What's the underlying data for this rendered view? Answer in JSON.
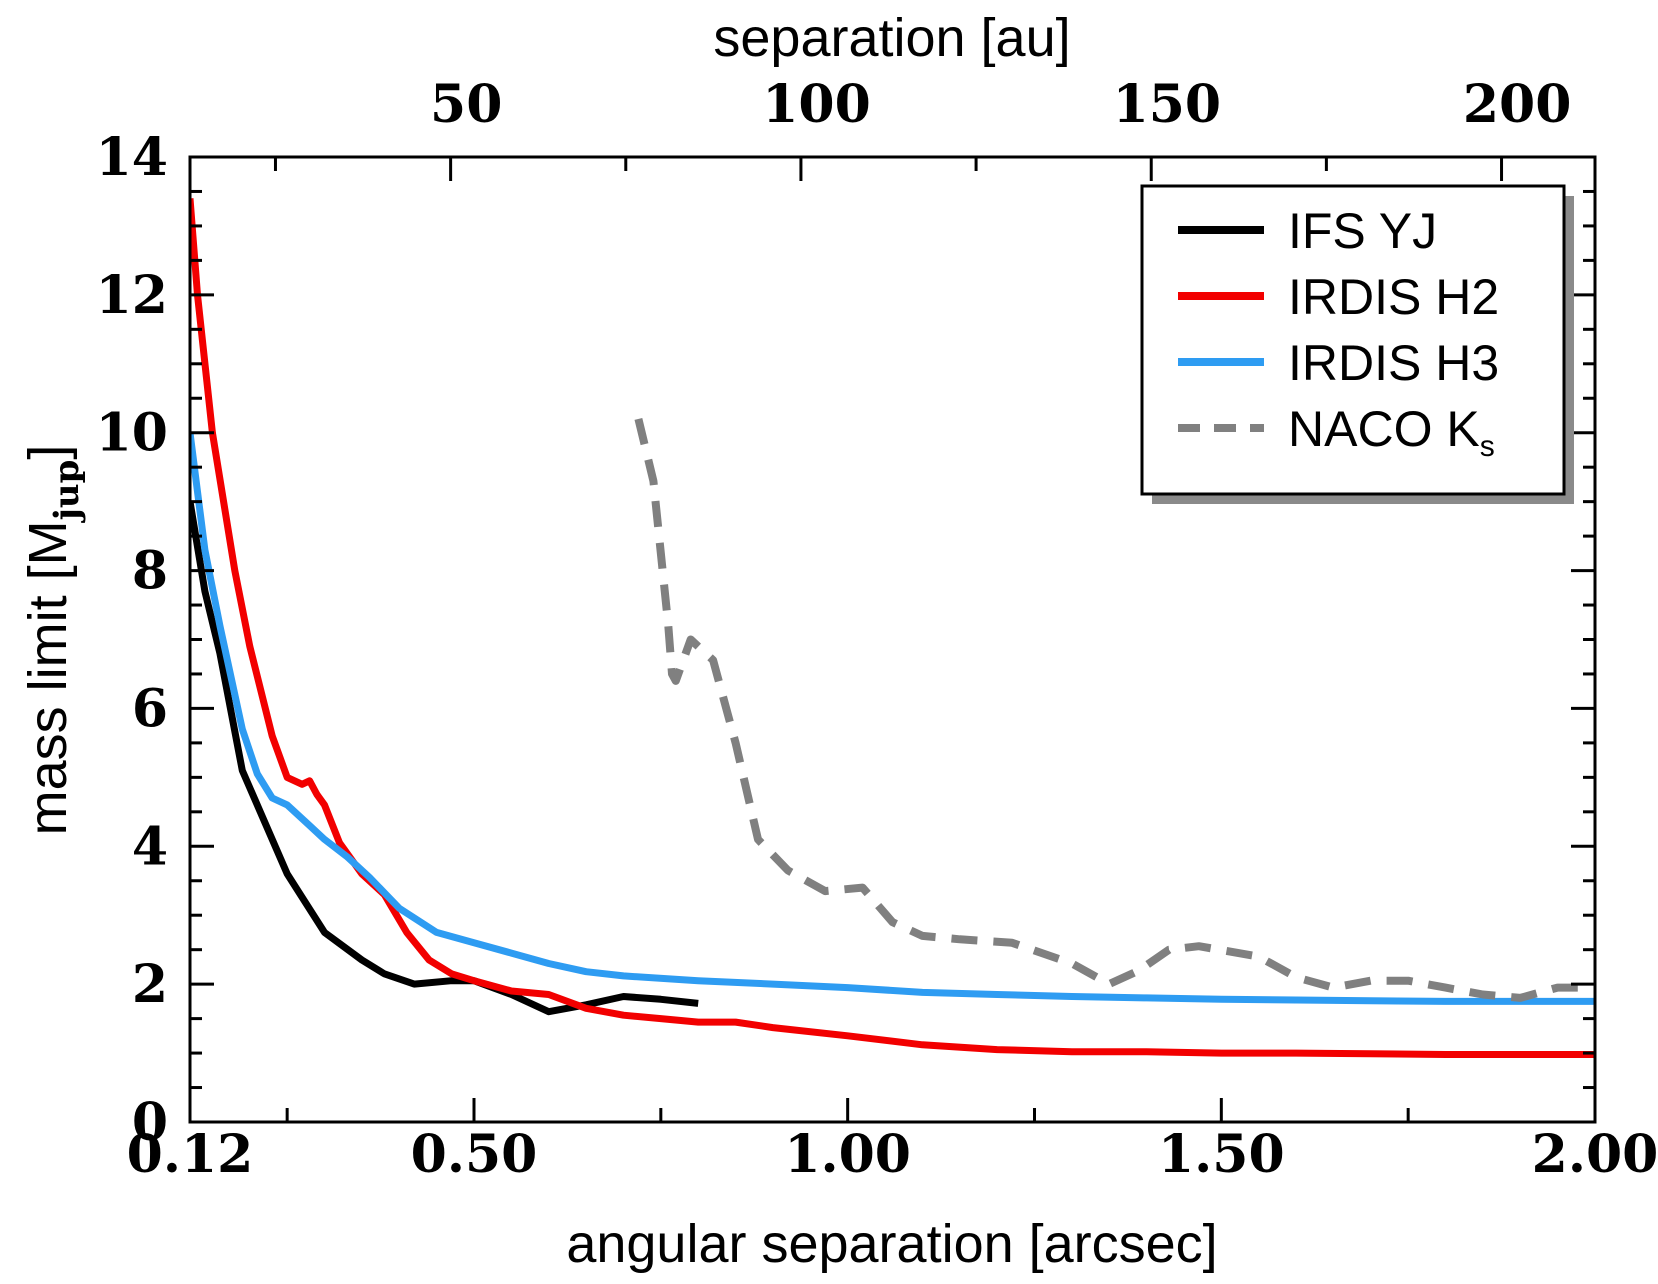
{
  "chart_data": {
    "type": "line",
    "xlabel": "angular separation [arcsec]",
    "ylabel": "mass limit [M",
    "ylabel_sub": "jup",
    "ylabel_close": "]",
    "top_axis_label": "separation [au]",
    "xlim": [
      0.12,
      2.0
    ],
    "ylim": [
      0,
      14
    ],
    "x_ticks": [
      {
        "value": 0.12,
        "label": "0.12"
      },
      {
        "value": 0.5,
        "label": "0.50"
      },
      {
        "value": 1.0,
        "label": "1.00"
      },
      {
        "value": 1.5,
        "label": "1.50"
      },
      {
        "value": 2.0,
        "label": "2.00"
      }
    ],
    "y_ticks": [
      {
        "value": 0,
        "label": "0"
      },
      {
        "value": 2,
        "label": "2"
      },
      {
        "value": 4,
        "label": "4"
      },
      {
        "value": 6,
        "label": "6"
      },
      {
        "value": 8,
        "label": "8"
      },
      {
        "value": 10,
        "label": "10"
      },
      {
        "value": 12,
        "label": "12"
      },
      {
        "value": 14,
        "label": "14"
      }
    ],
    "top_ticks": [
      {
        "value": 0.4896,
        "label": "50"
      },
      {
        "value": 0.9583,
        "label": "100"
      },
      {
        "value": 1.4271,
        "label": "150"
      },
      {
        "value": 1.8958,
        "label": "200"
      }
    ],
    "series": [
      {
        "name": "IFS YJ",
        "color": "#000000",
        "dashed": false,
        "x": [
          0.12,
          0.14,
          0.16,
          0.19,
          0.25,
          0.3,
          0.35,
          0.38,
          0.42,
          0.47,
          0.5,
          0.55,
          0.6,
          0.65,
          0.7,
          0.75,
          0.8
        ],
        "y": [
          9.0,
          7.7,
          6.8,
          5.1,
          3.6,
          2.75,
          2.35,
          2.15,
          2.0,
          2.05,
          2.05,
          1.85,
          1.6,
          1.7,
          1.82,
          1.78,
          1.72
        ]
      },
      {
        "name": "IRDIS H2",
        "color": "#f20000",
        "dashed": false,
        "x": [
          0.12,
          0.13,
          0.15,
          0.18,
          0.2,
          0.23,
          0.25,
          0.27,
          0.28,
          0.29,
          0.3,
          0.32,
          0.35,
          0.38,
          0.41,
          0.44,
          0.47,
          0.5,
          0.55,
          0.6,
          0.65,
          0.7,
          0.75,
          0.8,
          0.85,
          0.9,
          1.0,
          1.1,
          1.2,
          1.3,
          1.4,
          1.5,
          1.6,
          1.7,
          1.8,
          1.9,
          2.0
        ],
        "y": [
          13.4,
          12.0,
          10.0,
          8.0,
          6.9,
          5.6,
          5.0,
          4.9,
          4.95,
          4.75,
          4.6,
          4.05,
          3.6,
          3.3,
          2.75,
          2.35,
          2.15,
          2.05,
          1.9,
          1.85,
          1.65,
          1.55,
          1.5,
          1.45,
          1.45,
          1.37,
          1.25,
          1.12,
          1.05,
          1.02,
          1.02,
          1.0,
          1.0,
          0.99,
          0.98,
          0.98,
          0.98
        ]
      },
      {
        "name": "IRDIS H3",
        "color": "#2e9cf2",
        "dashed": false,
        "x": [
          0.12,
          0.14,
          0.16,
          0.19,
          0.21,
          0.23,
          0.25,
          0.28,
          0.3,
          0.33,
          0.36,
          0.4,
          0.45,
          0.5,
          0.55,
          0.6,
          0.65,
          0.7,
          0.8,
          0.9,
          1.0,
          1.1,
          1.2,
          1.3,
          1.4,
          1.5,
          1.6,
          1.7,
          1.8,
          1.9,
          2.0
        ],
        "y": [
          10.0,
          8.3,
          7.2,
          5.7,
          5.05,
          4.7,
          4.6,
          4.3,
          4.1,
          3.85,
          3.55,
          3.1,
          2.75,
          2.6,
          2.45,
          2.3,
          2.18,
          2.12,
          2.05,
          2.0,
          1.95,
          1.88,
          1.85,
          1.82,
          1.8,
          1.78,
          1.77,
          1.76,
          1.75,
          1.75,
          1.75
        ]
      },
      {
        "name": "NACO K",
        "name_sub": "s",
        "color": "#808080",
        "dashed": true,
        "x": [
          0.72,
          0.74,
          0.76,
          0.765,
          0.77,
          0.79,
          0.82,
          0.85,
          0.88,
          0.92,
          0.97,
          1.02,
          1.06,
          1.1,
          1.15,
          1.22,
          1.3,
          1.35,
          1.39,
          1.43,
          1.47,
          1.55,
          1.6,
          1.65,
          1.7,
          1.75,
          1.8,
          1.85,
          1.9,
          1.95,
          2.0
        ],
        "y": [
          10.2,
          9.3,
          7.2,
          6.5,
          6.4,
          7.0,
          6.7,
          5.5,
          4.1,
          3.65,
          3.35,
          3.4,
          2.9,
          2.7,
          2.65,
          2.6,
          2.3,
          2.0,
          2.2,
          2.5,
          2.55,
          2.4,
          2.1,
          1.95,
          2.05,
          2.05,
          1.95,
          1.85,
          1.8,
          1.95,
          1.95
        ]
      }
    ],
    "legend": {
      "position": "top-right",
      "entries": [
        {
          "label": "IFS YJ",
          "sub": ""
        },
        {
          "label": "IRDIS H2",
          "sub": ""
        },
        {
          "label": "IRDIS H3",
          "sub": ""
        },
        {
          "label": "NACO K",
          "sub": "s"
        }
      ]
    }
  }
}
